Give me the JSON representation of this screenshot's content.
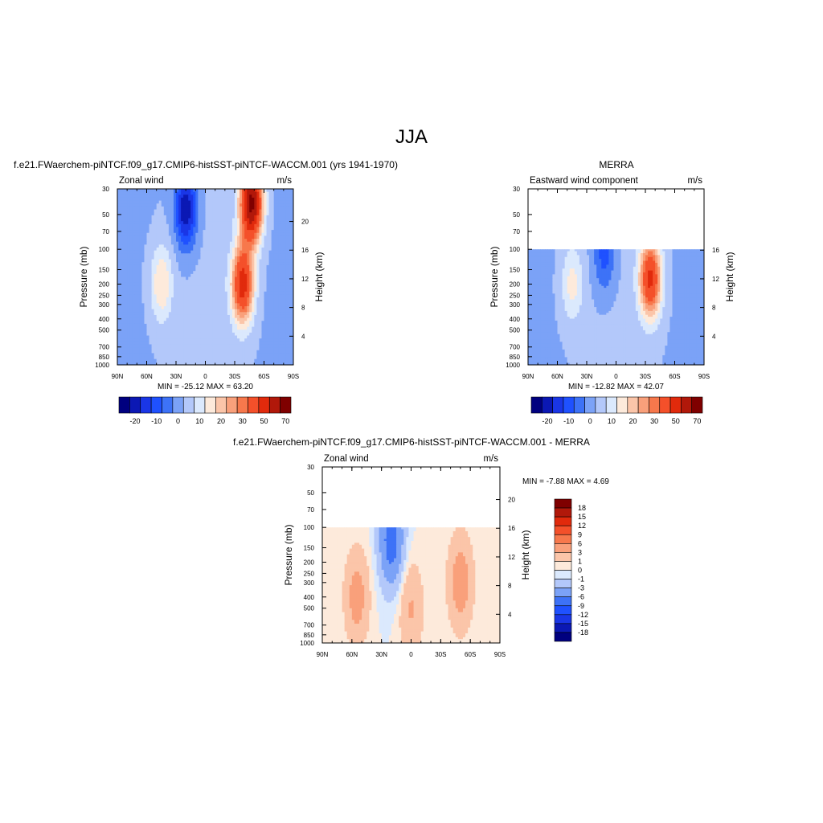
{
  "figure": {
    "title": "JJA"
  },
  "chart_data": [
    {
      "type": "heatmap",
      "case_title": "f.e21.FWaerchem-piNTCF.f09_g17.CMIP6-histSST-piNTCF-WACCM.001 (yrs 1941-1970)",
      "variable": "Zonal wind",
      "units": "m/s",
      "ylabel": "Pressure (mb)",
      "y2label": "Height (km)",
      "x_ticks": [
        "90N",
        "60N",
        "30N",
        "0",
        "30S",
        "60S",
        "90S"
      ],
      "y_ticks": [
        "30",
        "50",
        "70",
        "100",
        "150",
        "200",
        "250",
        "300",
        "400",
        "500",
        "700",
        "850",
        "1000"
      ],
      "y2_ticks": [
        "20",
        "16",
        "12",
        "8",
        "4"
      ],
      "ylim": [
        1000,
        30
      ],
      "data_top_mb": 30,
      "min_max_text": "MIN = -25.12  MAX =  63.20",
      "colorbar": {
        "orientation": "horizontal",
        "labels": [
          "-20",
          "-10",
          "0",
          "10",
          "20",
          "30",
          "50",
          "70"
        ],
        "colors": [
          "#00007f",
          "#0b18b4",
          "#1a36e6",
          "#1f51ff",
          "#3d72f7",
          "#7ba2f7",
          "#b3c8fa",
          "#dbe9fd",
          "#fdeadb",
          "#fbc5a9",
          "#f9a07b",
          "#f7784c",
          "#f4502a",
          "#e12a0c",
          "#b1180a",
          "#7f0000"
        ]
      },
      "features": [
        {
          "kind": "jet",
          "sign": "negative",
          "lat": 20,
          "p_mb": 45,
          "peak": -25.12
        },
        {
          "kind": "jet",
          "sign": "positive",
          "lat": -47,
          "p_mb": 40,
          "peak": 63.2
        },
        {
          "kind": "jet",
          "sign": "positive",
          "lat": -38,
          "p_mb": 200,
          "peak": 45
        },
        {
          "kind": "jet",
          "sign": "positive",
          "lat": 45,
          "p_mb": 200,
          "peak": 15
        }
      ]
    },
    {
      "type": "heatmap",
      "case_title": "MERRA",
      "variable": "Eastward wind component",
      "units": "m/s",
      "ylabel": "Pressure (mb)",
      "y2label": "Height (km)",
      "x_ticks": [
        "90N",
        "60N",
        "30N",
        "0",
        "30S",
        "60S",
        "90S"
      ],
      "y_ticks": [
        "30",
        "50",
        "70",
        "100",
        "150",
        "200",
        "250",
        "300",
        "400",
        "500",
        "700",
        "850",
        "1000"
      ],
      "y2_ticks": [
        "16",
        "12",
        "8",
        "4"
      ],
      "ylim": [
        1000,
        30
      ],
      "data_top_mb": 100,
      "min_max_text": "MIN = -12.82  MAX =  42.07",
      "colorbar": {
        "orientation": "horizontal",
        "labels": [
          "-20",
          "-10",
          "0",
          "10",
          "20",
          "30",
          "50",
          "70"
        ],
        "colors": [
          "#00007f",
          "#0b18b4",
          "#1a36e6",
          "#1f51ff",
          "#3d72f7",
          "#7ba2f7",
          "#b3c8fa",
          "#dbe9fd",
          "#fdeadb",
          "#fbc5a9",
          "#f9a07b",
          "#f7784c",
          "#f4502a",
          "#e12a0c",
          "#b1180a",
          "#7f0000"
        ]
      },
      "features": [
        {
          "kind": "jet",
          "sign": "negative",
          "lat": 12,
          "p_mb": 110,
          "peak": -12.82
        },
        {
          "kind": "jet",
          "sign": "positive",
          "lat": -35,
          "p_mb": 180,
          "peak": 42.07
        },
        {
          "kind": "jet",
          "sign": "positive",
          "lat": 45,
          "p_mb": 200,
          "peak": 12
        }
      ]
    },
    {
      "type": "heatmap",
      "case_title": "f.e21.FWaerchem-piNTCF.f09_g17.CMIP6-histSST-piNTCF-WACCM.001 - MERRA",
      "variable": "Zonal wind",
      "units": "m/s",
      "ylabel": "Pressure (mb)",
      "y2label": "Height (km)",
      "x_ticks": [
        "90N",
        "60N",
        "30N",
        "0",
        "30S",
        "60S",
        "90S"
      ],
      "y_ticks": [
        "30",
        "50",
        "70",
        "100",
        "150",
        "200",
        "250",
        "300",
        "400",
        "500",
        "700",
        "850",
        "1000"
      ],
      "y2_ticks": [
        "20",
        "16",
        "12",
        "8",
        "4"
      ],
      "ylim": [
        1000,
        30
      ],
      "data_top_mb": 100,
      "min_max_text": "MIN =  -7.88  MAX =   4.69",
      "colorbar": {
        "orientation": "vertical",
        "labels": [
          "18",
          "15",
          "12",
          "9",
          "6",
          "3",
          "1",
          "0",
          "-1",
          "-3",
          "-6",
          "-9",
          "-12",
          "-15",
          "-18"
        ],
        "colors": [
          "#7f0000",
          "#b1180a",
          "#e12a0c",
          "#f4502a",
          "#f7784c",
          "#f9a07b",
          "#fbc5a9",
          "#fdeadb",
          "#dbe9fd",
          "#b3c8fa",
          "#7ba2f7",
          "#3d72f7",
          "#1f51ff",
          "#1a36e6",
          "#0b18b4",
          "#00007f"
        ]
      },
      "features": [
        {
          "kind": "anomaly",
          "sign": "positive",
          "lat": 55,
          "p_mb": 400,
          "peak": 4.2
        },
        {
          "kind": "anomaly",
          "sign": "negative",
          "lat": 20,
          "p_mb": 130,
          "peak": -7.88
        },
        {
          "kind": "anomaly",
          "sign": "positive",
          "lat": 0,
          "p_mb": 500,
          "peak": 3.2
        },
        {
          "kind": "anomaly",
          "sign": "positive",
          "lat": -50,
          "p_mb": 300,
          "peak": 4.69
        }
      ]
    }
  ]
}
